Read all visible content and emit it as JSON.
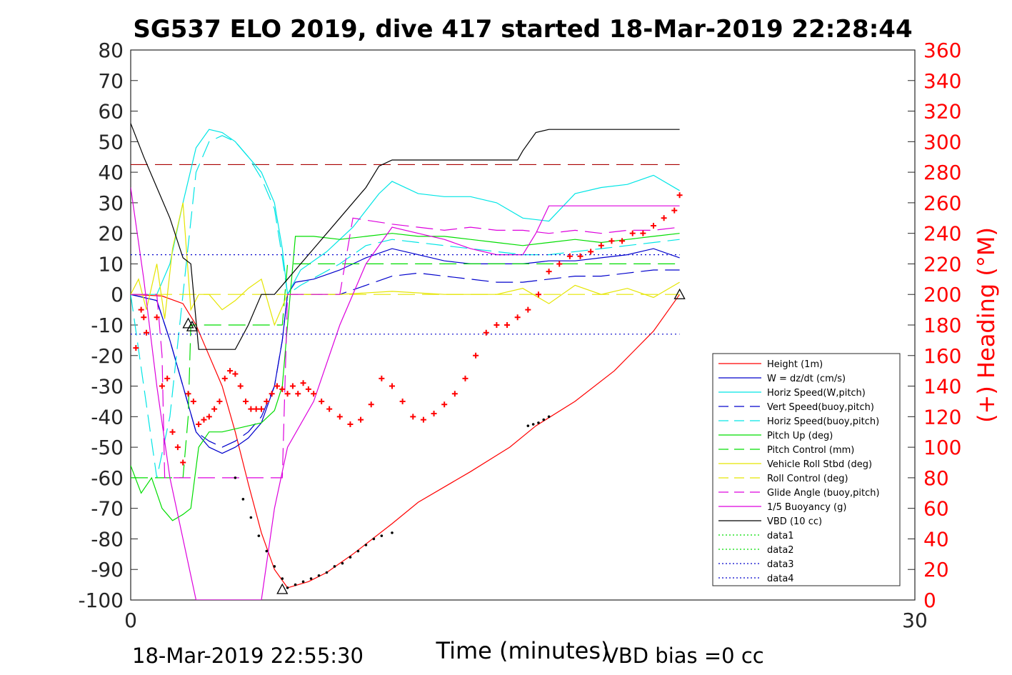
{
  "chart_data": {
    "type": "line",
    "title": "SG537 ELO 2019, dive 417 started 18-Mar-2019 22:28:44",
    "xlabel": "Time (minutes)",
    "ylabel_right": "(+) Heading (°M)",
    "xlim": [
      0,
      30
    ],
    "ylim": [
      -100,
      80
    ],
    "ylim_right": [
      0,
      360
    ],
    "x_ticks": [
      "0",
      "30"
    ],
    "y_ticks": [
      "80",
      "70",
      "60",
      "50",
      "40",
      "30",
      "20",
      "10",
      "0",
      "-10",
      "-20",
      "-30",
      "-40",
      "-50",
      "-60",
      "-70",
      "-80",
      "-90",
      "-100"
    ],
    "y_ticks_right": [
      "360",
      "340",
      "320",
      "300",
      "280",
      "260",
      "240",
      "220",
      "200",
      "180",
      "160",
      "140",
      "120",
      "100",
      "80",
      "60",
      "40",
      "20",
      "0"
    ],
    "grid": false,
    "legend_position": "lower-right",
    "footer_left": "18-Mar-2019 22:55:30",
    "footer_right": "VBD bias =0 cc",
    "colors": {
      "right_axis": "#ff0000",
      "left_axis": "#262626"
    },
    "series": [
      {
        "name": "Height (1m)",
        "color": "#ff0000",
        "style": "solid",
        "x": [
          0,
          1.2,
          2.0,
          2.5,
          3.0,
          3.5,
          4.0,
          4.5,
          5.0,
          5.5,
          6.0,
          6.8,
          7.5,
          8.5,
          10.0,
          11.0,
          13.0,
          14.5,
          15.5,
          17.0,
          18.5,
          20.0,
          21.0
        ],
        "y": [
          0,
          -0.5,
          -3,
          -10,
          -20,
          -30,
          -45,
          -62,
          -78,
          -90,
          -96,
          -94,
          -91,
          -85,
          -75,
          -68,
          -58,
          -50,
          -43,
          -35,
          -25,
          -12,
          0
        ]
      },
      {
        "name": "W = dz/dt (cm/s)",
        "color": "#0000cc",
        "style": "solid",
        "x": [
          0,
          1.0,
          1.5,
          2.0,
          2.5,
          3.0,
          3.5,
          4.0,
          4.5,
          5.0,
          5.5,
          5.8,
          6.0,
          6.3,
          7.0,
          8.0,
          9.0,
          10.0,
          11.0,
          12.0,
          13.0,
          14.0,
          15.0,
          16.0,
          17.0,
          18.0,
          19.0,
          20.0,
          21.0
        ],
        "y": [
          0,
          -2,
          -15,
          -30,
          -45,
          -50,
          -52,
          -50,
          -47,
          -42,
          -30,
          -15,
          0,
          4,
          5,
          8,
          12,
          15,
          13,
          11,
          10,
          10,
          10,
          11,
          11,
          12,
          13,
          15,
          12
        ]
      },
      {
        "name": "Horiz Speed(W,pitch)",
        "color": "#00e5e5",
        "style": "solid",
        "x": [
          0,
          1.0,
          1.5,
          2.0,
          2.5,
          3.0,
          3.5,
          4.0,
          4.5,
          5.0,
          5.5,
          5.8,
          6.0,
          6.5,
          7.5,
          8.5,
          9.5,
          10.0,
          11.0,
          12.0,
          13.0,
          14.0,
          15.0,
          16.0,
          17.0,
          18.0,
          19.0,
          20.0,
          21.0
        ],
        "y": [
          0,
          0,
          10,
          30,
          48,
          54,
          53,
          50,
          45,
          40,
          30,
          15,
          0,
          8,
          14,
          22,
          33,
          37,
          33,
          32,
          32,
          30,
          25,
          24,
          33,
          35,
          36,
          39,
          34
        ]
      },
      {
        "name": "Vert Speed(buoy,pitch)",
        "color": "#0000cc",
        "style": "dashed",
        "x": [
          0,
          1.0,
          1.5,
          2.0,
          2.5,
          3.0,
          3.5,
          4.0,
          4.5,
          5.0,
          5.5,
          5.8,
          6.0,
          6.3,
          8.0,
          9.0,
          10.0,
          11.0,
          12.0,
          13.0,
          14.0,
          15.0,
          16.0,
          17.0,
          18.0,
          19.0,
          20.0,
          21.0
        ],
        "y": [
          0,
          -2,
          -15,
          -30,
          -45,
          -48,
          -50,
          -48,
          -45,
          -40,
          -30,
          -15,
          0,
          0,
          0,
          3,
          6,
          7,
          6,
          5,
          4,
          4,
          5,
          6,
          6,
          7,
          8,
          8
        ]
      },
      {
        "name": "Horiz Speed(buoy,pitch)",
        "color": "#00e5e5",
        "style": "dashed",
        "x": [
          0,
          1.0,
          1.5,
          2.0,
          2.5,
          3.0,
          3.5,
          4.0,
          4.5,
          5.0,
          5.5,
          5.8,
          6.0,
          6.5,
          8.0,
          9.0,
          10.0,
          11.0,
          12.0,
          13.0,
          14.0,
          15.0,
          16.0,
          17.0,
          18.0,
          19.0,
          20.0,
          21.0
        ],
        "y": [
          0,
          -60,
          -40,
          0,
          40,
          50,
          52,
          50,
          45,
          38,
          28,
          12,
          0,
          3,
          10,
          16,
          18,
          17,
          16,
          15,
          14,
          13,
          13,
          14,
          15,
          16,
          17,
          18
        ]
      },
      {
        "name": "Pitch Up (deg)",
        "color": "#00dd00",
        "style": "solid",
        "x": [
          0,
          0.4,
          0.8,
          1.2,
          1.6,
          2.0,
          2.3,
          2.6,
          3.0,
          3.5,
          4.0,
          4.5,
          5.0,
          5.5,
          5.8,
          6.0,
          6.3,
          7.0,
          8.0,
          9.0,
          10.0,
          11.0,
          12.0,
          13.0,
          14.0,
          15.0,
          16.0,
          17.0,
          18.0,
          19.0,
          20.0,
          21.0
        ],
        "y": [
          -56,
          -65,
          -60,
          -70,
          -74,
          -72,
          -70,
          -50,
          -45,
          -45,
          -44,
          -43,
          -42,
          -38,
          -30,
          -10,
          19,
          19,
          18,
          19,
          20,
          19,
          19,
          18,
          17,
          16,
          17,
          18,
          17,
          18,
          19,
          20
        ]
      },
      {
        "name": "Pitch Control (mm)",
        "color": "#00dd00",
        "style": "dashed",
        "x": [
          0,
          1.0,
          2.0,
          2.2,
          2.3,
          3.0,
          5.8,
          6.0,
          21.0
        ],
        "y": [
          -60,
          -60,
          -60,
          -40,
          -10,
          -10,
          -10,
          10,
          10
        ]
      },
      {
        "name": "Vehicle Roll Stbd (deg)",
        "color": "#e5e500",
        "style": "solid",
        "x": [
          0,
          0.3,
          0.6,
          1.0,
          1.3,
          1.6,
          2.0,
          2.3,
          2.6,
          3.0,
          3.5,
          4.0,
          4.5,
          5.0,
          5.5,
          6.0,
          8.0,
          10.0,
          12.0,
          14.0,
          15.0,
          16.0,
          17.0,
          18.0,
          19.0,
          20.0,
          21.0
        ],
        "y": [
          0,
          5,
          -5,
          10,
          -8,
          15,
          30,
          -5,
          0,
          0,
          -5,
          -2,
          2,
          5,
          -10,
          0,
          0,
          1,
          0,
          0,
          2,
          -3,
          3,
          0,
          2,
          -1,
          4
        ]
      },
      {
        "name": "Roll Control (deg)",
        "color": "#e5e500",
        "style": "dashed",
        "x": [
          0,
          21.0
        ],
        "y": [
          0,
          0
        ]
      },
      {
        "name": "Glide Angle (buoy,pitch)",
        "color": "#dd00dd",
        "style": "dashed",
        "x": [
          0,
          1.0,
          1.2,
          1.3,
          2.0,
          3.0,
          4.0,
          5.0,
          5.8,
          6.0,
          8.0,
          8.5,
          10.0,
          11.0,
          12.0,
          13.0,
          14.0,
          15.0,
          16.0,
          17.0,
          18.0,
          19.0,
          20.0,
          21.0
        ],
        "y": [
          0,
          0,
          -20,
          -60,
          -60,
          -60,
          -60,
          -60,
          -60,
          0,
          0,
          25,
          23,
          22,
          21,
          22,
          21,
          21,
          20,
          21,
          20,
          21,
          21,
          22
        ]
      },
      {
        "name": "1/5 Buoyancy (g)",
        "color": "#dd00dd",
        "style": "solid",
        "x": [
          0,
          0.5,
          1.0,
          1.5,
          2.0,
          2.5,
          2.7,
          4.1,
          5.0,
          5.5,
          6.0,
          7.0,
          8.0,
          9.0,
          10.0,
          11.0,
          12.0,
          13.0,
          14.0,
          15.0,
          15.5,
          16.0,
          17.0,
          18.0,
          19.0,
          20.0,
          21.0
        ],
        "y": [
          35,
          5,
          -30,
          -60,
          -80,
          -100,
          -100,
          -100,
          -100,
          -70,
          -50,
          -35,
          -10,
          10,
          22,
          20,
          18,
          15,
          13,
          13,
          20,
          29,
          29,
          29,
          29,
          29,
          29
        ]
      },
      {
        "name": "VBD (10 cc)",
        "color": "#000000",
        "style": "solid",
        "x": [
          0,
          0.5,
          1.0,
          1.5,
          2.0,
          2.3,
          2.6,
          3.0,
          3.5,
          4.0,
          4.5,
          5.0,
          5.5,
          6.0,
          7.0,
          8.0,
          9.0,
          9.5,
          10.0,
          11.0,
          12.0,
          13.0,
          14.0,
          14.8,
          15.0,
          15.5,
          16.0,
          17.0,
          18.0,
          19.0,
          20.0,
          21.0
        ],
        "y": [
          56,
          45,
          35,
          25,
          12,
          10,
          -18,
          -18,
          -18,
          -18,
          -10,
          0,
          0,
          5,
          15,
          25,
          35,
          42,
          44,
          44,
          44,
          44,
          44,
          44,
          47,
          53,
          54,
          54,
          54,
          54,
          54,
          54
        ]
      },
      {
        "name": "data1",
        "color": "#00dd00",
        "style": "dotted",
        "x": [],
        "y": []
      },
      {
        "name": "data2",
        "color": "#00dd00",
        "style": "dotted",
        "x": [],
        "y": []
      },
      {
        "name": "data3",
        "color": "#0000cc",
        "style": "dotted",
        "x": [
          0,
          21.0
        ],
        "y": [
          13,
          13
        ]
      },
      {
        "name": "data4",
        "color": "#0000cc",
        "style": "dotted",
        "x": [
          0,
          21.0
        ],
        "y": [
          -13,
          -13
        ]
      }
    ],
    "reference_lines": [
      {
        "color": "#aa0000",
        "style": "dashed",
        "y": 42.5,
        "x": [
          0,
          21.0
        ]
      }
    ],
    "heading_points": {
      "color": "#ff0000",
      "x": [
        0.2,
        0.4,
        0.5,
        0.6,
        1.0,
        1.2,
        1.4,
        1.6,
        1.8,
        2.0,
        2.2,
        2.4,
        2.6,
        2.8,
        3.0,
        3.2,
        3.4,
        3.6,
        3.8,
        4.0,
        4.2,
        4.4,
        4.6,
        4.8,
        5.0,
        5.2,
        5.4,
        5.6,
        5.8,
        6.0,
        6.2,
        6.4,
        6.6,
        6.8,
        7.0,
        7.3,
        7.6,
        8.0,
        8.4,
        8.8,
        9.2,
        9.6,
        10.0,
        10.4,
        10.8,
        11.2,
        11.6,
        12.0,
        12.4,
        12.8,
        13.2,
        13.6,
        14.0,
        14.4,
        14.8,
        15.2,
        15.6,
        16.0,
        16.4,
        16.8,
        17.2,
        17.6,
        18.0,
        18.4,
        18.8,
        19.2,
        19.6,
        20.0,
        20.4,
        20.8,
        21.0
      ],
      "y": [
        165,
        190,
        185,
        175,
        185,
        140,
        145,
        110,
        100,
        90,
        135,
        130,
        115,
        118,
        120,
        125,
        130,
        145,
        150,
        148,
        140,
        130,
        125,
        125,
        125,
        130,
        135,
        140,
        138,
        135,
        140,
        135,
        142,
        138,
        135,
        130,
        125,
        120,
        115,
        118,
        128,
        145,
        140,
        130,
        120,
        118,
        122,
        128,
        135,
        145,
        160,
        175,
        180,
        180,
        185,
        190,
        200,
        215,
        220,
        225,
        225,
        228,
        232,
        235,
        235,
        240,
        240,
        245,
        250,
        255,
        265
      ]
    },
    "marker_points": {
      "color": "#000000",
      "x": [
        4.0,
        4.3,
        4.6,
        4.9,
        5.2,
        5.5,
        5.8,
        6.0,
        6.3,
        6.6,
        6.9,
        7.2,
        7.5,
        7.8,
        8.1,
        8.4,
        8.7,
        9.0,
        9.3,
        9.6,
        10.0,
        15.2,
        15.4,
        15.6,
        15.8,
        16.0
      ],
      "y": [
        -60,
        -67,
        -73,
        -79,
        -84,
        -89,
        -93,
        -96,
        -95,
        -94,
        -93,
        -92,
        -91,
        -89,
        -88,
        -86,
        -84,
        -82,
        -80,
        -79,
        -78,
        -43,
        -42.5,
        -42,
        -41,
        -40
      ]
    },
    "triangles": [
      {
        "x": 2.2,
        "y": -9.5
      },
      {
        "x": 2.35,
        "y": -10.5
      },
      {
        "x": 5.8,
        "y": -96.5
      },
      {
        "x": 21.0,
        "y": 0
      }
    ]
  }
}
